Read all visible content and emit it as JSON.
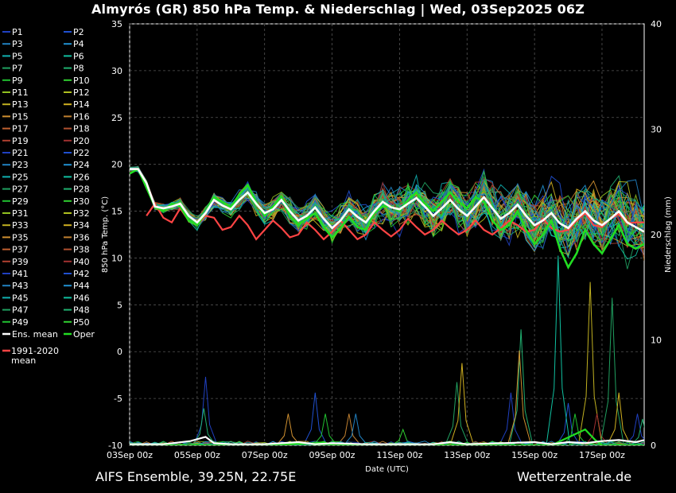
{
  "title": "Almyrós  (GR)  850 hPa Temp. & Niederschlag | Wed, 03Sep2025 06Z",
  "footer": {
    "model": "AIFS Ensemble, 39.25N, 22.75E",
    "site": "Wetterzentrale.de"
  },
  "colors": {
    "background": "#000000",
    "ens_mean": "#ffffff",
    "oper": "#22dd22",
    "climate_mean": "#ff4444",
    "grid": "#555555"
  },
  "chart_data": {
    "type": "line",
    "xlabel": "Date (UTC)",
    "ylabel": "850 hPa Temp. (°C)",
    "y2label": "Niederschlag (mm)",
    "x_ticks": [
      "03Sep 00z",
      "05Sep 00z",
      "07Sep 00z",
      "09Sep 00z",
      "11Sep 00z",
      "13Sep 00z",
      "15Sep 00z",
      "17Sep 00z"
    ],
    "x_range_days": [
      0,
      15.25
    ],
    "ylim": [
      -10,
      35
    ],
    "y_ticks": [
      -10,
      -5,
      0,
      5,
      10,
      15,
      20,
      25,
      30,
      35
    ],
    "y2lim": [
      0,
      40
    ],
    "y2_ticks": [
      0,
      10,
      20,
      30,
      40
    ],
    "grid": true,
    "legend_position": "left",
    "legend": {
      "members": [
        "P1",
        "P2",
        "P3",
        "P4",
        "P5",
        "P6",
        "P7",
        "P8",
        "P9",
        "P10",
        "P11",
        "P12",
        "P13",
        "P14",
        "P15",
        "P16",
        "P17",
        "P18",
        "P19",
        "P20",
        "P21",
        "P22",
        "P23",
        "P24",
        "P25",
        "P26",
        "P27",
        "P28",
        "P29",
        "P30",
        "P31",
        "P32",
        "P33",
        "P34",
        "P35",
        "P36",
        "P37",
        "P38",
        "P39",
        "P40",
        "P41",
        "P42",
        "P43",
        "P44",
        "P45",
        "P46",
        "P47",
        "P48",
        "P49",
        "P50"
      ],
      "member_colors": [
        "#2040c0",
        "#2050d0",
        "#2080c0",
        "#2090d0",
        "#10b0b0",
        "#10c0a0",
        "#20a060",
        "#20b070",
        "#20c030",
        "#30d030",
        "#90c020",
        "#b0c020",
        "#c0b020",
        "#d0b020",
        "#d09030",
        "#c08030",
        "#c06030",
        "#b05030",
        "#b04030",
        "#a03030",
        "#2040c0",
        "#2050d0",
        "#2080c0",
        "#2090d0",
        "#10b0b0",
        "#10c0a0",
        "#20a060",
        "#20b070",
        "#20c030",
        "#30d030",
        "#90c020",
        "#b0c020",
        "#c0b020",
        "#d0b020",
        "#d09030",
        "#c08030",
        "#c06030",
        "#b05030",
        "#b04030",
        "#a03030",
        "#2040c0",
        "#2050d0",
        "#2080c0",
        "#2090d0",
        "#10b0b0",
        "#10c0a0",
        "#20a060",
        "#20b070",
        "#20c030",
        "#30d030"
      ],
      "ens_mean_label": "Ens. mean",
      "oper_label": "Oper",
      "climate_label_1": "1991-2020",
      "climate_label_2": "mean"
    },
    "ens_mean": [
      [
        0,
        19.5
      ],
      [
        0.25,
        19.5
      ],
      [
        0.5,
        18
      ],
      [
        0.75,
        15.5
      ],
      [
        1,
        15.3
      ],
      [
        1.25,
        15.5
      ],
      [
        1.5,
        15.8
      ],
      [
        1.75,
        14.5
      ],
      [
        2,
        13.8
      ],
      [
        2.25,
        14.8
      ],
      [
        2.5,
        16.2
      ],
      [
        2.75,
        15.6
      ],
      [
        3,
        15.2
      ],
      [
        3.25,
        16.2
      ],
      [
        3.5,
        17.0
      ],
      [
        3.75,
        15.8
      ],
      [
        4,
        14.8
      ],
      [
        4.25,
        15.2
      ],
      [
        4.5,
        16.2
      ],
      [
        4.75,
        15.0
      ],
      [
        5,
        14.0
      ],
      [
        5.25,
        14.5
      ],
      [
        5.5,
        15.4
      ],
      [
        5.75,
        14.2
      ],
      [
        6,
        13.2
      ],
      [
        6.25,
        14.0
      ],
      [
        6.5,
        15.2
      ],
      [
        6.75,
        14.4
      ],
      [
        7,
        13.8
      ],
      [
        7.25,
        15.0
      ],
      [
        7.5,
        16.0
      ],
      [
        7.75,
        15.4
      ],
      [
        8,
        15.2
      ],
      [
        8.25,
        15.8
      ],
      [
        8.5,
        16.4
      ],
      [
        8.75,
        15.5
      ],
      [
        9,
        14.5
      ],
      [
        9.25,
        15.3
      ],
      [
        9.5,
        16.2
      ],
      [
        9.75,
        15.2
      ],
      [
        10,
        14.5
      ],
      [
        10.25,
        15.5
      ],
      [
        10.5,
        16.5
      ],
      [
        10.75,
        15.3
      ],
      [
        11,
        14.2
      ],
      [
        11.25,
        14.8
      ],
      [
        11.5,
        15.7
      ],
      [
        11.75,
        14.5
      ],
      [
        12,
        13.5
      ],
      [
        12.25,
        14.0
      ],
      [
        12.5,
        14.8
      ],
      [
        12.75,
        13.7
      ],
      [
        13,
        13.2
      ],
      [
        13.25,
        14.2
      ],
      [
        13.5,
        15.0
      ],
      [
        13.75,
        14.0
      ],
      [
        14,
        13.5
      ],
      [
        14.25,
        14.2
      ],
      [
        14.5,
        15.0
      ],
      [
        14.75,
        13.8
      ],
      [
        15,
        13.3
      ],
      [
        15.25,
        12.8
      ]
    ],
    "oper": [
      [
        0,
        19.0
      ],
      [
        0.25,
        19.5
      ],
      [
        0.5,
        17.5
      ],
      [
        0.75,
        15.5
      ],
      [
        1,
        15.0
      ],
      [
        1.25,
        15.8
      ],
      [
        1.5,
        15.5
      ],
      [
        1.75,
        14.0
      ],
      [
        2,
        13.5
      ],
      [
        2.25,
        14.8
      ],
      [
        2.5,
        16.5
      ],
      [
        2.75,
        16.0
      ],
      [
        3,
        15.4
      ],
      [
        3.25,
        16.8
      ],
      [
        3.5,
        17.8
      ],
      [
        3.75,
        16.0
      ],
      [
        4,
        14.5
      ],
      [
        4.25,
        15.5
      ],
      [
        4.5,
        16.6
      ],
      [
        4.75,
        14.5
      ],
      [
        5,
        13.5
      ],
      [
        5.25,
        14.2
      ],
      [
        5.5,
        14.8
      ],
      [
        5.75,
        13.3
      ],
      [
        6,
        12.2
      ],
      [
        6.25,
        13.2
      ],
      [
        6.5,
        14.4
      ],
      [
        6.75,
        13.3
      ],
      [
        7,
        13.0
      ],
      [
        7.25,
        14.8
      ],
      [
        7.5,
        15.5
      ],
      [
        7.75,
        15.5
      ],
      [
        8,
        15.0
      ],
      [
        8.25,
        16.2
      ],
      [
        8.5,
        17.0
      ],
      [
        8.75,
        15.8
      ],
      [
        9,
        15.0
      ],
      [
        9.25,
        16.0
      ],
      [
        9.5,
        17.0
      ],
      [
        9.75,
        16.0
      ],
      [
        10,
        15.3
      ],
      [
        10.25,
        16.5
      ],
      [
        10.5,
        16.0
      ],
      [
        10.75,
        14.0
      ],
      [
        11,
        13.0
      ],
      [
        11.25,
        13.5
      ],
      [
        11.5,
        15.0
      ],
      [
        11.75,
        13.0
      ],
      [
        12,
        11.5
      ],
      [
        12.25,
        12.5
      ],
      [
        12.5,
        14.0
      ],
      [
        12.75,
        11.0
      ],
      [
        13,
        9.0
      ],
      [
        13.25,
        10.5
      ],
      [
        13.5,
        13.0
      ],
      [
        13.75,
        11.5
      ],
      [
        14,
        10.5
      ],
      [
        14.25,
        12.0
      ],
      [
        14.5,
        13.5
      ],
      [
        14.75,
        11.5
      ],
      [
        15,
        11.0
      ],
      [
        15.25,
        11.5
      ]
    ],
    "climate_mean": [
      [
        0.5,
        14.5
      ],
      [
        0.75,
        15.8
      ],
      [
        1,
        14.3
      ],
      [
        1.25,
        13.8
      ],
      [
        1.5,
        15.3
      ],
      [
        1.75,
        14.0
      ],
      [
        2,
        13.5
      ],
      [
        2.25,
        14.5
      ],
      [
        2.5,
        14.3
      ],
      [
        2.75,
        13.0
      ],
      [
        3,
        13.3
      ],
      [
        3.25,
        14.5
      ],
      [
        3.5,
        13.5
      ],
      [
        3.75,
        12.0
      ],
      [
        4,
        13.0
      ],
      [
        4.25,
        14.0
      ],
      [
        4.5,
        13.2
      ],
      [
        4.75,
        12.2
      ],
      [
        5,
        12.5
      ],
      [
        5.25,
        13.8
      ],
      [
        5.5,
        13.0
      ],
      [
        5.75,
        12.0
      ],
      [
        6,
        12.8
      ],
      [
        6.25,
        14.0
      ],
      [
        6.5,
        13.0
      ],
      [
        6.75,
        12.0
      ],
      [
        7,
        12.5
      ],
      [
        7.25,
        13.8
      ],
      [
        7.5,
        13.0
      ],
      [
        7.75,
        12.3
      ],
      [
        8,
        13.0
      ],
      [
        8.25,
        14.2
      ],
      [
        8.5,
        13.3
      ],
      [
        8.75,
        12.5
      ],
      [
        9,
        13.0
      ],
      [
        9.25,
        14.0
      ],
      [
        9.5,
        13.2
      ],
      [
        9.75,
        12.5
      ],
      [
        10,
        13.0
      ],
      [
        10.25,
        14.0
      ],
      [
        10.5,
        13.0
      ],
      [
        10.75,
        12.5
      ],
      [
        11,
        13.2
      ],
      [
        11.25,
        14.0
      ],
      [
        11.5,
        13.5
      ],
      [
        11.75,
        12.8
      ],
      [
        12,
        13.0
      ],
      [
        12.25,
        14.2
      ],
      [
        12.5,
        13.2
      ],
      [
        12.75,
        12.8
      ],
      [
        13,
        13.0
      ],
      [
        13.25,
        14.0
      ],
      [
        13.5,
        14.8
      ],
      [
        13.75,
        13.5
      ],
      [
        14,
        13.3
      ],
      [
        14.25,
        14.2
      ],
      [
        14.5,
        14.7
      ],
      [
        14.75,
        13.7
      ],
      [
        15,
        13.8
      ],
      [
        15.25,
        13.8
      ]
    ],
    "precip_ens_mean": [
      [
        0,
        0.1
      ],
      [
        1,
        0.1
      ],
      [
        1.8,
        0.4
      ],
      [
        2.25,
        0.8
      ],
      [
        2.5,
        0.2
      ],
      [
        3,
        0.1
      ],
      [
        4,
        0.1
      ],
      [
        5,
        0.3
      ],
      [
        5.5,
        0.1
      ],
      [
        6,
        0.2
      ],
      [
        7,
        0.1
      ],
      [
        8,
        0.1
      ],
      [
        9,
        0.1
      ],
      [
        9.5,
        0.3
      ],
      [
        10,
        0.1
      ],
      [
        11,
        0.2
      ],
      [
        12,
        0.3
      ],
      [
        12.5,
        0.1
      ],
      [
        13,
        0.3
      ],
      [
        13.5,
        0.2
      ],
      [
        14,
        0.4
      ],
      [
        14.5,
        0.5
      ],
      [
        15,
        0.3
      ],
      [
        15.25,
        0.5
      ]
    ],
    "precip_oper": [
      [
        0,
        0
      ],
      [
        3,
        0
      ],
      [
        5.5,
        0.2
      ],
      [
        5.75,
        0.3
      ],
      [
        6,
        0
      ],
      [
        12.5,
        0
      ],
      [
        13.5,
        1.5
      ],
      [
        13.8,
        0.5
      ],
      [
        14,
        0
      ],
      [
        15.25,
        0
      ]
    ],
    "member_precip_peaks_mm": [
      {
        "day": 2.25,
        "mm": 6.5
      },
      {
        "day": 2.2,
        "mm": 3.5
      },
      {
        "day": 4.7,
        "mm": 3.0
      },
      {
        "day": 5.5,
        "mm": 5.0
      },
      {
        "day": 5.8,
        "mm": 3.0
      },
      {
        "day": 6.5,
        "mm": 3.0
      },
      {
        "day": 6.7,
        "mm": 3.0
      },
      {
        "day": 8.1,
        "mm": 1.5
      },
      {
        "day": 9.7,
        "mm": 6.0
      },
      {
        "day": 9.85,
        "mm": 7.8
      },
      {
        "day": 11.3,
        "mm": 5.0
      },
      {
        "day": 11.6,
        "mm": 11.0
      },
      {
        "day": 11.55,
        "mm": 9.0
      },
      {
        "day": 13.0,
        "mm": 4.0
      },
      {
        "day": 13.2,
        "mm": 3.0
      },
      {
        "day": 12.7,
        "mm": 18.0
      },
      {
        "day": 13.65,
        "mm": 15.5
      },
      {
        "day": 13.85,
        "mm": 3.0
      },
      {
        "day": 14.3,
        "mm": 14.0
      },
      {
        "day": 14.5,
        "mm": 5.0
      },
      {
        "day": 15.05,
        "mm": 3.0
      },
      {
        "day": 15.2,
        "mm": 2.5
      }
    ]
  }
}
